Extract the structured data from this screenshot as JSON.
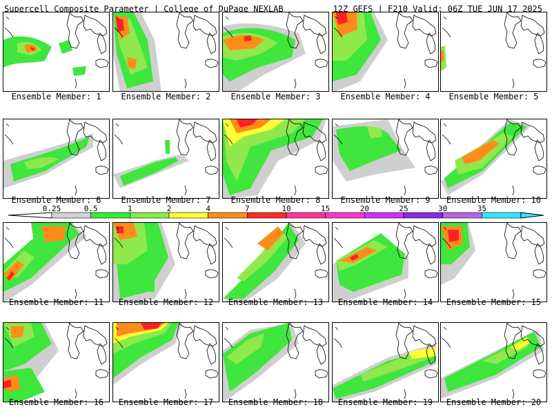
{
  "header": {
    "left": "Supercell Composite Parameter | College of DuPage NEXLAB",
    "right": "12Z GEFS | F210 Valid: 06Z TUE JUN 17 2025"
  },
  "member_label_prefix": "Ensemble Member: ",
  "members": [
    1,
    2,
    3,
    4,
    5,
    6,
    7,
    8,
    9,
    10,
    11,
    12,
    13,
    14,
    15,
    16,
    17,
    18,
    19,
    20
  ],
  "colorbar": {
    "ticks": [
      "0.25",
      "0.5",
      "1",
      "2",
      "4",
      "7",
      "10",
      "15",
      "20",
      "25",
      "30",
      "35"
    ],
    "colors": [
      "#d3d3d3",
      "#33ee33",
      "#88ee44",
      "#ffff33",
      "#ff8c1a",
      "#ff2a2a",
      "#ff3399",
      "#ff33cc",
      "#cc33ff",
      "#8a2be2",
      "#b366e6",
      "#33e6ff"
    ]
  },
  "contour_colors": {
    "gray": "#cfcfcf",
    "green": "#3ee63e",
    "lightgreen": "#8fe84c",
    "yellow": "#ffff33",
    "orange": "#ff8c1a",
    "red": "#ff2222"
  }
}
